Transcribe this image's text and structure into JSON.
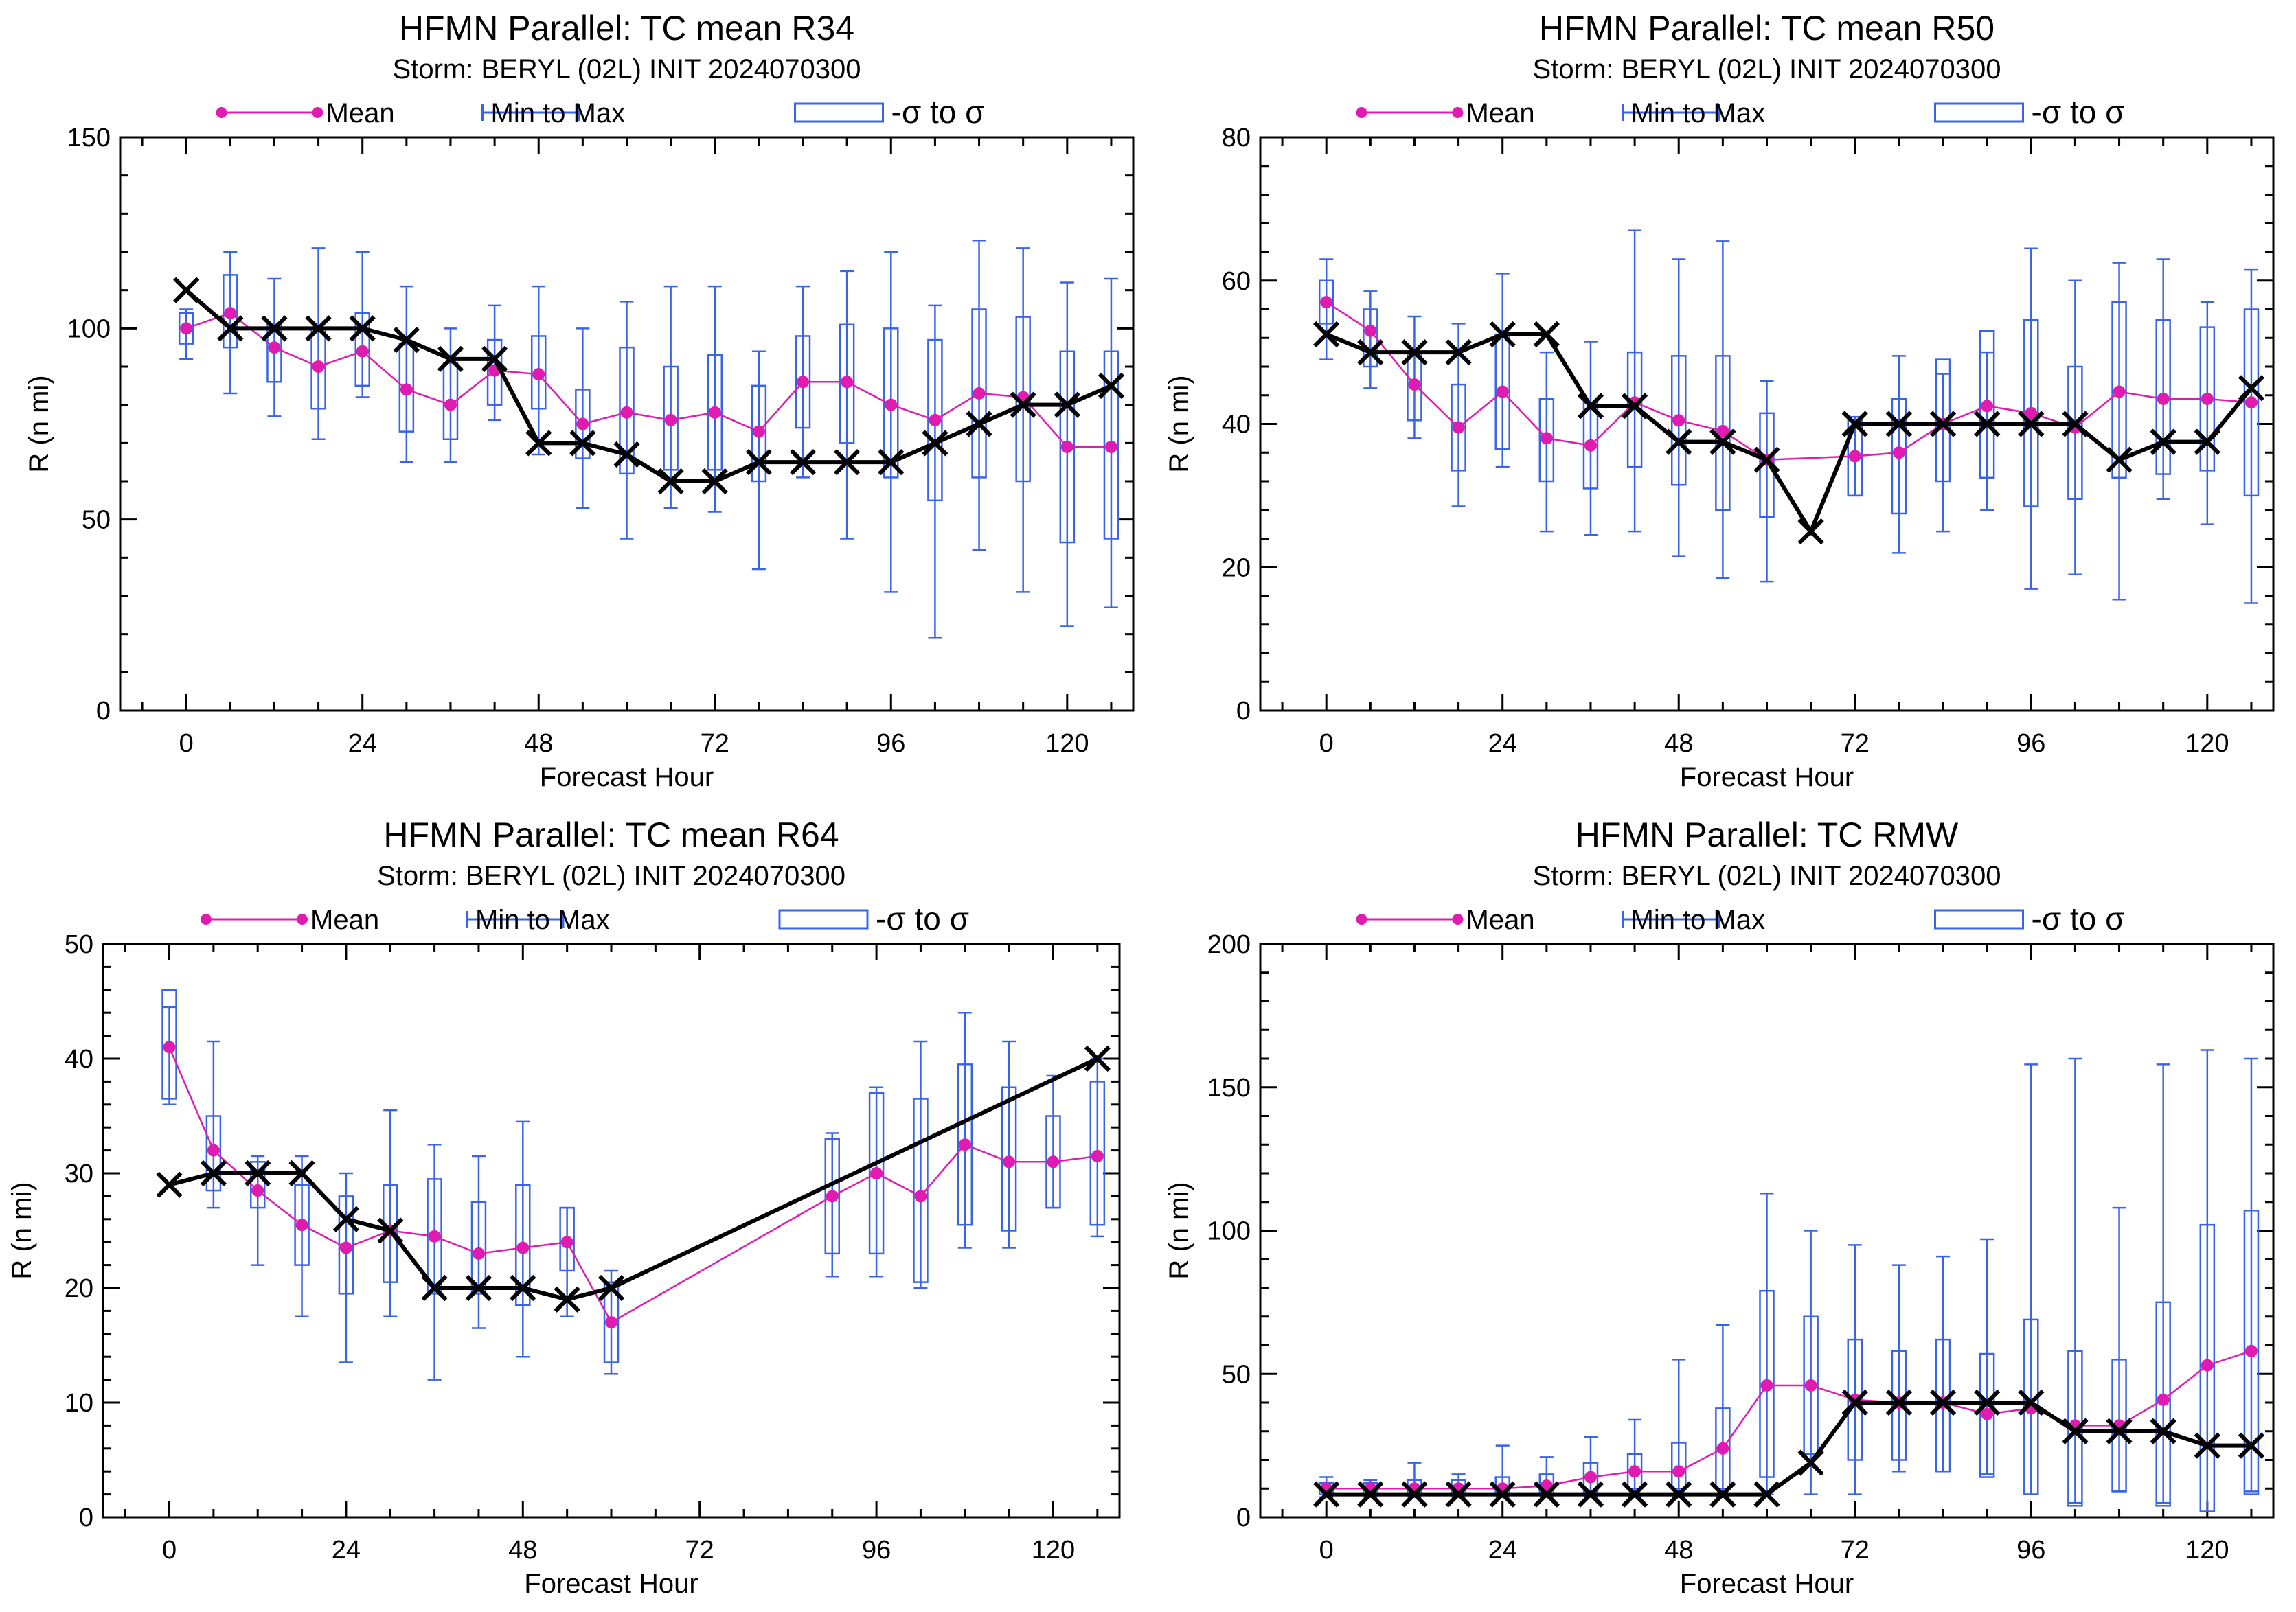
{
  "figure": {
    "storm_line": "Storm: BERYL (02L) INIT 2024070300",
    "legend": {
      "mean": "Mean",
      "minmax": "Min to Max",
      "sigma": "-σ to σ"
    },
    "xlabel": "Forecast Hour",
    "ylabel": "R (n mi)",
    "colors": {
      "mean": "#e01cb0",
      "whisker": "#3a64e8",
      "obs": "#000000",
      "axis": "#000000"
    }
  },
  "chart_data": [
    {
      "type": "box",
      "title": "HFMN Parallel: TC mean R34",
      "subtitle": "Storm: BERYL (02L) INIT 2024070300",
      "xlabel": "Forecast Hour",
      "ylabel": "R (n mi)",
      "xlim": [
        -9,
        129
      ],
      "ylim": [
        0,
        150
      ],
      "xticks": [
        0,
        24,
        48,
        72,
        96,
        120
      ],
      "yticks": [
        0,
        50,
        100,
        150
      ],
      "legend": [
        "Mean",
        "Min to Max",
        "-σ to σ"
      ],
      "legend_position": "top",
      "series": [
        {
          "name": "Mean",
          "x": [
            0,
            6,
            12,
            18,
            24,
            30,
            36,
            42,
            48,
            54,
            60,
            66,
            72,
            78,
            84,
            90,
            96,
            102,
            108,
            114,
            120,
            126
          ],
          "values": [
            100,
            104,
            95,
            90,
            94,
            84,
            80,
            89,
            88,
            75,
            78,
            76,
            78,
            73,
            86,
            86,
            80,
            76,
            83,
            82,
            69,
            69
          ]
        },
        {
          "name": "Min to Max",
          "x": [
            0,
            6,
            12,
            18,
            24,
            30,
            36,
            42,
            48,
            54,
            60,
            66,
            72,
            78,
            84,
            90,
            96,
            102,
            108,
            114,
            120,
            126
          ],
          "low": [
            92,
            83,
            77,
            71,
            82,
            65,
            65,
            76,
            67,
            53,
            45,
            53,
            52,
            37,
            61,
            45,
            31,
            19,
            42,
            31,
            22,
            27
          ],
          "high": [
            105,
            120,
            113,
            121,
            120,
            111,
            100,
            106,
            111,
            100,
            107,
            111,
            111,
            94,
            111,
            115,
            120,
            106,
            123,
            121,
            112,
            113
          ]
        },
        {
          "name": "-σ to σ",
          "x": [
            0,
            6,
            12,
            18,
            24,
            30,
            36,
            42,
            48,
            54,
            60,
            66,
            72,
            78,
            84,
            90,
            96,
            102,
            108,
            114,
            120,
            126
          ],
          "low": [
            96,
            95,
            86,
            79,
            85,
            73,
            71,
            80,
            79,
            66,
            62,
            63,
            63,
            60,
            74,
            70,
            61,
            55,
            61,
            60,
            44,
            45
          ],
          "high": [
            104,
            114,
            101,
            100,
            104,
            96,
            91,
            97,
            98,
            84,
            95,
            90,
            93,
            85,
            98,
            101,
            100,
            97,
            105,
            103,
            94,
            94
          ]
        }
      ],
      "obs": {
        "x": [
          0,
          6,
          12,
          18,
          24,
          30,
          36,
          42,
          48,
          54,
          60,
          66,
          72,
          78,
          84,
          90,
          96,
          102,
          108,
          114,
          120,
          126
        ],
        "values": [
          110,
          100,
          100,
          100,
          100,
          97,
          92,
          92,
          70,
          70,
          67,
          60,
          60,
          65,
          65,
          65,
          65,
          70,
          75,
          80,
          80,
          85
        ]
      }
    },
    {
      "type": "box",
      "title": "HFMN Parallel: TC mean R50",
      "subtitle": "Storm: BERYL (02L) INIT 2024070300",
      "xlabel": "Forecast Hour",
      "ylabel": "R (n mi)",
      "xlim": [
        -9,
        129
      ],
      "ylim": [
        0,
        80
      ],
      "xticks": [
        0,
        24,
        48,
        72,
        96,
        120
      ],
      "yticks": [
        0,
        20,
        40,
        60,
        80
      ],
      "legend": [
        "Mean",
        "Min to Max",
        "-σ to σ"
      ],
      "legend_position": "top",
      "series": [
        {
          "name": "Mean",
          "x": [
            0,
            6,
            12,
            18,
            24,
            30,
            36,
            42,
            48,
            54,
            60,
            72,
            78,
            84,
            90,
            96,
            102,
            108,
            114,
            120,
            126
          ],
          "values": [
            57,
            53,
            45.5,
            39.5,
            44.5,
            38,
            37,
            43,
            40.5,
            39,
            35,
            35.5,
            36,
            40,
            42.5,
            41.5,
            39.5,
            44.5,
            43.5,
            43.5,
            43
          ]
        },
        {
          "name": "Min to Max",
          "x": [
            0,
            6,
            12,
            18,
            24,
            30,
            36,
            42,
            48,
            54,
            60,
            72,
            78,
            84,
            90,
            96,
            102,
            108,
            114,
            120,
            126
          ],
          "low": [
            49,
            45,
            38,
            28.5,
            34,
            25,
            24.5,
            25,
            21.5,
            18.5,
            18,
            30,
            22,
            25,
            28,
            17,
            19,
            15.5,
            29.5,
            26,
            15
          ],
          "high": [
            63,
            58.5,
            55,
            54,
            61,
            50,
            51.5,
            67,
            63,
            65.5,
            46,
            41,
            49.5,
            47,
            50,
            64.5,
            60,
            62.5,
            63,
            57,
            61.5
          ]
        },
        {
          "name": "-σ to σ",
          "x": [
            0,
            6,
            12,
            18,
            24,
            30,
            36,
            42,
            48,
            54,
            60,
            72,
            78,
            84,
            90,
            96,
            102,
            108,
            114,
            120,
            126
          ],
          "low": [
            54,
            48,
            40.5,
            33.5,
            36.5,
            32,
            31,
            34,
            31.5,
            28,
            27,
            30,
            27.5,
            32,
            32.5,
            28.5,
            29.5,
            32.5,
            33,
            33.5,
            30
          ],
          "high": [
            60,
            56,
            50,
            45.5,
            52.5,
            43.5,
            43,
            50,
            49.5,
            49.5,
            41.5,
            40.5,
            43.5,
            49,
            53,
            54.5,
            48,
            57,
            54.5,
            53.5,
            56
          ]
        }
      ],
      "obs": {
        "x": [
          0,
          6,
          12,
          18,
          24,
          30,
          36,
          42,
          48,
          54,
          60,
          66,
          72,
          78,
          84,
          90,
          96,
          102,
          108,
          114,
          120,
          126
        ],
        "values": [
          52.5,
          50,
          50,
          50,
          52.5,
          52.5,
          42.5,
          42.5,
          37.5,
          37.5,
          35,
          25,
          40,
          40,
          40,
          40,
          40,
          40,
          35,
          37.5,
          37.5,
          45
        ]
      }
    },
    {
      "type": "box",
      "title": "HFMN Parallel: TC mean R64",
      "subtitle": "Storm: BERYL (02L) INIT 2024070300",
      "xlabel": "Forecast Hour",
      "ylabel": "R (n mi)",
      "xlim": [
        -9,
        129
      ],
      "ylim": [
        0,
        50
      ],
      "xticks": [
        0,
        24,
        48,
        72,
        96,
        120
      ],
      "yticks": [
        0,
        10,
        20,
        30,
        40,
        50
      ],
      "legend": [
        "Mean",
        "Min to Max",
        "-σ to σ"
      ],
      "legend_position": "top",
      "series": [
        {
          "name": "Mean",
          "x": [
            0,
            6,
            12,
            18,
            24,
            30,
            36,
            42,
            48,
            54,
            60,
            90,
            96,
            102,
            108,
            114,
            120,
            126
          ],
          "values": [
            41,
            32,
            28.5,
            25.5,
            23.5,
            25,
            24.5,
            23,
            23.5,
            24,
            17,
            28,
            30,
            28,
            32.5,
            31,
            31,
            31.5
          ]
        },
        {
          "name": "Min to Max",
          "x": [
            0,
            6,
            12,
            18,
            24,
            30,
            36,
            42,
            48,
            54,
            60,
            90,
            96,
            102,
            108,
            114,
            120,
            126
          ],
          "low": [
            36,
            27,
            22,
            17.5,
            13.5,
            17.5,
            12,
            16.5,
            14,
            17.5,
            12.5,
            21,
            21,
            20,
            23.5,
            23.5,
            27,
            24.5
          ],
          "high": [
            44.5,
            41.5,
            31.5,
            31.5,
            30,
            35.5,
            32.5,
            31.5,
            34.5,
            27,
            21.5,
            33.5,
            37.5,
            41.5,
            44,
            41.5,
            38.5,
            40
          ]
        },
        {
          "name": "-σ to σ",
          "x": [
            0,
            6,
            12,
            18,
            24,
            30,
            36,
            42,
            48,
            54,
            60,
            90,
            96,
            102,
            108,
            114,
            120,
            126
          ],
          "low": [
            36.5,
            28.5,
            27,
            22,
            19.5,
            20.5,
            19.5,
            19.5,
            18.5,
            21.5,
            13.5,
            23,
            23,
            20.5,
            25.5,
            25,
            27,
            25.5
          ],
          "high": [
            46,
            35,
            31,
            29,
            28,
            29,
            29.5,
            27.5,
            29,
            27,
            20.5,
            33,
            37,
            36.5,
            39.5,
            37.5,
            35,
            38
          ]
        }
      ],
      "obs": {
        "x": [
          0,
          6,
          12,
          18,
          24,
          30,
          36,
          42,
          48,
          54,
          60,
          126
        ],
        "values": [
          29,
          30,
          30,
          30,
          26,
          25,
          20,
          20,
          20,
          19,
          20,
          40
        ]
      }
    },
    {
      "type": "box",
      "title": "HFMN Parallel: TC RMW",
      "subtitle": "Storm: BERYL (02L) INIT 2024070300",
      "xlabel": "Forecast Hour",
      "ylabel": "R (n mi)",
      "xlim": [
        -9,
        129
      ],
      "ylim": [
        0,
        200
      ],
      "xticks": [
        0,
        24,
        48,
        72,
        96,
        120
      ],
      "yticks": [
        0,
        50,
        100,
        150,
        200
      ],
      "legend": [
        "Mean",
        "Min to Max",
        "-σ to σ"
      ],
      "legend_position": "top",
      "series": [
        {
          "name": "Mean",
          "x": [
            0,
            6,
            12,
            18,
            24,
            30,
            36,
            42,
            48,
            54,
            60,
            66,
            72,
            78,
            84,
            90,
            96,
            102,
            108,
            114,
            120,
            126
          ],
          "values": [
            10,
            10,
            10,
            10,
            10,
            11,
            14,
            16,
            16,
            24,
            46,
            46,
            41,
            40,
            40,
            36,
            38,
            32,
            32,
            41,
            53,
            58
          ]
        },
        {
          "name": "Min to Max",
          "x": [
            0,
            6,
            12,
            18,
            24,
            30,
            36,
            42,
            48,
            54,
            60,
            66,
            72,
            78,
            84,
            90,
            96,
            102,
            108,
            114,
            120,
            126
          ],
          "low": [
            7,
            7,
            7,
            7,
            7,
            7,
            7,
            7,
            7,
            7,
            8,
            8,
            8,
            16,
            16,
            15,
            8,
            5,
            9,
            5,
            2,
            9
          ],
          "high": [
            14,
            13,
            19,
            15,
            25,
            21,
            28,
            34,
            55,
            67,
            113,
            100,
            95,
            88,
            91,
            97,
            158,
            160,
            108,
            158,
            163,
            160
          ]
        },
        {
          "name": "-σ to σ",
          "x": [
            0,
            6,
            12,
            18,
            24,
            30,
            36,
            42,
            48,
            54,
            60,
            66,
            72,
            78,
            84,
            90,
            96,
            102,
            108,
            114,
            120,
            126
          ],
          "low": [
            8,
            8,
            8,
            8,
            8,
            8,
            9,
            10,
            10,
            10,
            14,
            22,
            20,
            20,
            16,
            14,
            8,
            4,
            9,
            4,
            2,
            8
          ],
          "high": [
            12,
            12,
            13,
            13,
            14,
            15,
            19,
            22,
            26,
            38,
            79,
            70,
            62,
            58,
            62,
            57,
            69,
            58,
            55,
            75,
            102,
            107
          ]
        }
      ],
      "obs": {
        "x": [
          0,
          6,
          12,
          18,
          24,
          30,
          36,
          42,
          48,
          54,
          60,
          66,
          72,
          78,
          84,
          90,
          96,
          102,
          108,
          114,
          120,
          126
        ],
        "values": [
          8,
          8,
          8,
          8,
          8,
          8,
          8,
          8,
          8,
          8,
          8,
          19,
          40,
          40,
          40,
          40,
          40,
          30,
          30,
          30,
          25,
          25
        ]
      }
    }
  ]
}
